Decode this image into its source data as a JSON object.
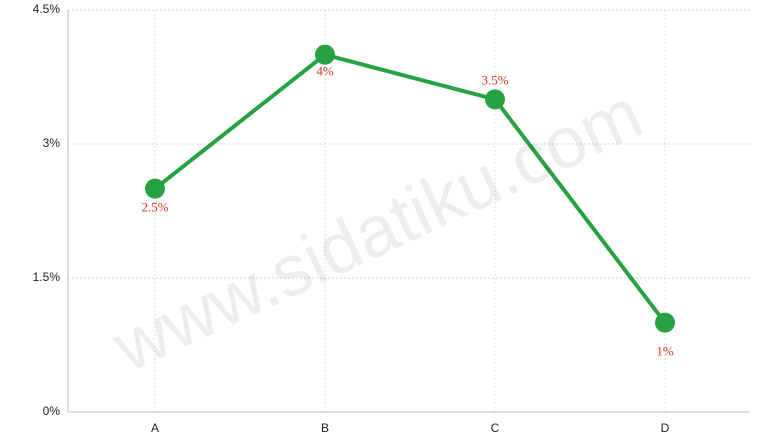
{
  "chart_data": {
    "type": "line",
    "categories": [
      "A",
      "B",
      "C",
      "D"
    ],
    "series": [
      {
        "color": "#27a243",
        "values": [
          2.5,
          4,
          3.5,
          1
        ],
        "value_labels": [
          "2.5%",
          "4%",
          "3.5%",
          "1%"
        ]
      }
    ],
    "ylim": [
      0,
      4.5
    ],
    "yticks": [
      {
        "value": 0,
        "label": "0%"
      },
      {
        "value": 1.5,
        "label": "1.5%"
      },
      {
        "value": 3,
        "label": "3%"
      },
      {
        "value": 4.5,
        "label": "4.5%"
      }
    ],
    "grid": true,
    "watermark": "www.sidatiku.com"
  }
}
